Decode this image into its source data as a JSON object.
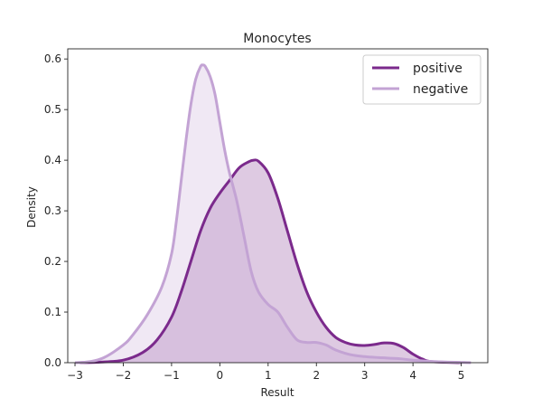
{
  "chart_data": {
    "type": "area",
    "title": "Monocytes",
    "xlabel": "Result",
    "ylabel": "Density",
    "xlim": [
      -3.15,
      5.55
    ],
    "ylim": [
      0,
      0.62
    ],
    "xticks": [
      -3,
      -2,
      -1,
      0,
      1,
      2,
      3,
      4,
      5
    ],
    "yticks": [
      0.0,
      0.1,
      0.2,
      0.3,
      0.4,
      0.5,
      0.6
    ],
    "xtick_labels": [
      "−3",
      "−2",
      "−1",
      "0",
      "1",
      "2",
      "3",
      "4",
      "5"
    ],
    "ytick_labels": [
      "0.0",
      "0.1",
      "0.2",
      "0.3",
      "0.4",
      "0.5",
      "0.6"
    ],
    "grid": false,
    "legend_position": "top-right",
    "series": [
      {
        "name": "positive",
        "color": "#7b2a8c",
        "points": [
          [
            -2.9,
            0.0
          ],
          [
            -2.5,
            0.001
          ],
          [
            -2.0,
            0.005
          ],
          [
            -1.6,
            0.02
          ],
          [
            -1.3,
            0.045
          ],
          [
            -1.0,
            0.09
          ],
          [
            -0.8,
            0.14
          ],
          [
            -0.6,
            0.2
          ],
          [
            -0.4,
            0.26
          ],
          [
            -0.2,
            0.305
          ],
          [
            0.0,
            0.335
          ],
          [
            0.2,
            0.36
          ],
          [
            0.4,
            0.385
          ],
          [
            0.6,
            0.397
          ],
          [
            0.7,
            0.4
          ],
          [
            0.8,
            0.398
          ],
          [
            1.0,
            0.375
          ],
          [
            1.2,
            0.325
          ],
          [
            1.4,
            0.26
          ],
          [
            1.6,
            0.195
          ],
          [
            1.8,
            0.14
          ],
          [
            2.0,
            0.1
          ],
          [
            2.2,
            0.07
          ],
          [
            2.4,
            0.05
          ],
          [
            2.6,
            0.04
          ],
          [
            2.8,
            0.035
          ],
          [
            3.0,
            0.034
          ],
          [
            3.2,
            0.036
          ],
          [
            3.4,
            0.039
          ],
          [
            3.6,
            0.038
          ],
          [
            3.8,
            0.03
          ],
          [
            4.0,
            0.017
          ],
          [
            4.2,
            0.007
          ],
          [
            4.4,
            0.002
          ],
          [
            5.0,
            0.0
          ]
        ]
      },
      {
        "name": "negative",
        "color": "#c3a3d4",
        "points": [
          [
            -3.0,
            0.0
          ],
          [
            -2.7,
            0.002
          ],
          [
            -2.4,
            0.01
          ],
          [
            -2.0,
            0.035
          ],
          [
            -1.8,
            0.055
          ],
          [
            -1.5,
            0.095
          ],
          [
            -1.2,
            0.15
          ],
          [
            -1.0,
            0.215
          ],
          [
            -0.9,
            0.28
          ],
          [
            -0.8,
            0.36
          ],
          [
            -0.7,
            0.44
          ],
          [
            -0.6,
            0.51
          ],
          [
            -0.5,
            0.56
          ],
          [
            -0.4,
            0.585
          ],
          [
            -0.35,
            0.588
          ],
          [
            -0.3,
            0.585
          ],
          [
            -0.2,
            0.565
          ],
          [
            -0.1,
            0.53
          ],
          [
            0.0,
            0.475
          ],
          [
            0.1,
            0.42
          ],
          [
            0.2,
            0.375
          ],
          [
            0.35,
            0.32
          ],
          [
            0.5,
            0.25
          ],
          [
            0.65,
            0.18
          ],
          [
            0.8,
            0.14
          ],
          [
            1.0,
            0.115
          ],
          [
            1.2,
            0.1
          ],
          [
            1.4,
            0.07
          ],
          [
            1.6,
            0.045
          ],
          [
            1.8,
            0.04
          ],
          [
            2.0,
            0.04
          ],
          [
            2.2,
            0.035
          ],
          [
            2.4,
            0.025
          ],
          [
            2.7,
            0.016
          ],
          [
            3.0,
            0.012
          ],
          [
            3.3,
            0.01
          ],
          [
            3.7,
            0.008
          ],
          [
            4.0,
            0.005
          ],
          [
            4.5,
            0.002
          ],
          [
            5.2,
            0.0
          ]
        ]
      }
    ]
  }
}
